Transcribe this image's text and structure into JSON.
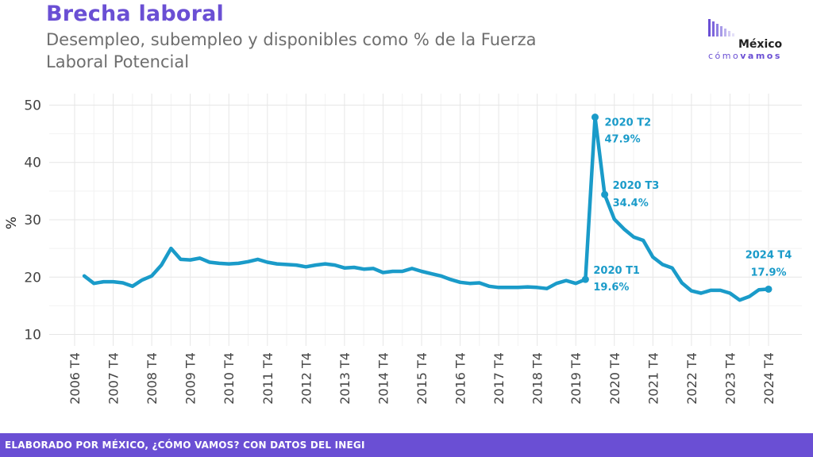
{
  "header": {
    "title": "Brecha laboral",
    "subtitle": "Desempleo, subempleo y disponibles como % de la Fuerza Laboral Potencial"
  },
  "logo": {
    "word_top": "México",
    "word_light": "cómo",
    "word_bold": "vamos"
  },
  "footer": {
    "text": "ELABORADO POR MÉXICO, ¿CÓMO VAMOS? CON DATOS DEL INEGI"
  },
  "colors": {
    "line": "#1a9bc9",
    "accent": "#6a4fd4",
    "grid": "#e6e6e6"
  },
  "chart_data": {
    "type": "line",
    "ylabel": "%",
    "xlabel": "",
    "ylim": [
      8,
      52
    ],
    "yticks": [
      10,
      20,
      30,
      40,
      50
    ],
    "xticks": [
      "2006 T4",
      "2007 T4",
      "2008 T4",
      "2009 T4",
      "2010 T4",
      "2011 T4",
      "2012 T4",
      "2013 T4",
      "2014 T4",
      "2015 T4",
      "2016 T4",
      "2017 T4",
      "2018 T4",
      "2019 T4",
      "2020 T4",
      "2021 T4",
      "2022 T4",
      "2023 T4",
      "2024 T4"
    ],
    "grid": true,
    "series": [
      {
        "x": [
          "2007 T1",
          "2007 T2",
          "2007 T3",
          "2007 T4",
          "2008 T1",
          "2008 T2",
          "2008 T3",
          "2008 T4",
          "2009 T1",
          "2009 T2",
          "2009 T3",
          "2009 T4",
          "2010 T1",
          "2010 T2",
          "2010 T3",
          "2010 T4",
          "2011 T1",
          "2011 T2",
          "2011 T3",
          "2011 T4",
          "2012 T1",
          "2012 T2",
          "2012 T3",
          "2012 T4",
          "2013 T1",
          "2013 T2",
          "2013 T3",
          "2013 T4",
          "2014 T1",
          "2014 T2",
          "2014 T3",
          "2014 T4",
          "2015 T1",
          "2015 T2",
          "2015 T3",
          "2015 T4",
          "2016 T1",
          "2016 T2",
          "2016 T3",
          "2016 T4",
          "2017 T1",
          "2017 T2",
          "2017 T3",
          "2017 T4",
          "2018 T1",
          "2018 T2",
          "2018 T3",
          "2018 T4",
          "2019 T1",
          "2019 T2",
          "2019 T3",
          "2019 T4",
          "2020 T1",
          "2020 T2",
          "2020 T3",
          "2020 T4",
          "2021 T1",
          "2021 T2",
          "2021 T3",
          "2021 T4",
          "2022 T1",
          "2022 T2",
          "2022 T3",
          "2022 T4",
          "2023 T1",
          "2023 T2",
          "2023 T3",
          "2023 T4",
          "2024 T1",
          "2024 T2",
          "2024 T3",
          "2024 T4"
        ],
        "values": [
          20.2,
          18.9,
          19.2,
          19.2,
          19.0,
          18.4,
          19.5,
          20.2,
          22.1,
          25.0,
          23.1,
          23.0,
          23.3,
          22.6,
          22.4,
          22.3,
          22.4,
          22.7,
          23.1,
          22.6,
          22.3,
          22.2,
          22.1,
          21.8,
          22.1,
          22.3,
          22.1,
          21.6,
          21.7,
          21.4,
          21.5,
          20.8,
          21.0,
          21.0,
          21.5,
          21.0,
          20.6,
          20.2,
          19.6,
          19.1,
          18.9,
          19.0,
          18.4,
          18.2,
          18.2,
          18.2,
          18.3,
          18.2,
          18.0,
          18.9,
          19.4,
          18.9,
          19.6,
          47.9,
          34.4,
          30.1,
          28.4,
          27.0,
          26.4,
          23.5,
          22.2,
          21.6,
          19.0,
          17.6,
          17.2,
          17.7,
          17.7,
          17.2,
          16.0,
          16.6,
          17.8,
          17.9
        ]
      }
    ],
    "annotations": [
      {
        "x": "2020 T1",
        "label": "2020 T1",
        "value_label": "19.6%"
      },
      {
        "x": "2020 T2",
        "label": "2020 T2",
        "value_label": "47.9%"
      },
      {
        "x": "2020 T3",
        "label": "2020 T3",
        "value_label": "34.4%"
      },
      {
        "x": "2024 T4",
        "label": "2024 T4",
        "value_label": "17.9%"
      }
    ]
  }
}
